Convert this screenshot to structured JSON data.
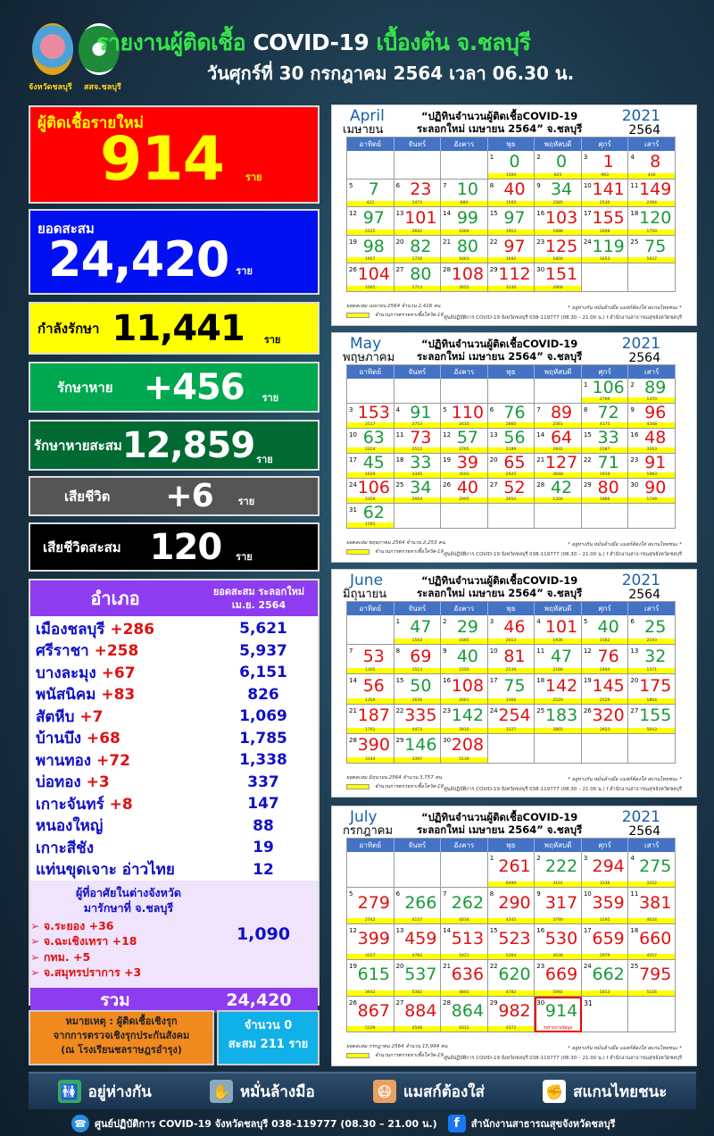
{
  "header": {
    "logo1_caption": "จังหวัดชลบุรี",
    "logo2_caption": "สสจ.ชลบุรี",
    "title_a": "รายงานผู้ติดเชื้อ ",
    "title_b": "COVID-19",
    "title_c": " เบื้องต้น จ.ชลบุรี",
    "subtitle": "วันศุกร์ที่ 30 กรกฎาคม 2564 เวลา 06.30 น."
  },
  "stats": {
    "new": {
      "label": "ผู้ติดเชื้อรายใหม่",
      "value": "914",
      "unit": "ราย"
    },
    "cumulative": {
      "label": "ยอดสะสม",
      "value": "24,420",
      "unit": "ราย"
    },
    "treating": {
      "label": "กำลังรักษา",
      "value": "11,441",
      "unit": "ราย"
    },
    "recovered": {
      "label": "รักษาหาย",
      "value": "+456",
      "unit": "ราย"
    },
    "recovered_total": {
      "label": "รักษาหายสะสม",
      "value": "12,859",
      "unit": "ราย"
    },
    "deaths": {
      "label": "เสียชีวิต",
      "value": "+6",
      "unit": "ราย"
    },
    "deaths_total": {
      "label": "เสียชีวิตสะสม",
      "value": "120",
      "unit": "ราย"
    }
  },
  "districts": {
    "col1": "อำเภอ",
    "col2_a": "ยอดสะสม ระลอกใหม่",
    "col2_b": "เม.ย. 2564",
    "rows": [
      {
        "name": "เมืองชลบุรี",
        "new": "+286",
        "total": "5,621"
      },
      {
        "name": "ศรีราชา",
        "new": "+258",
        "total": "5,937"
      },
      {
        "name": "บางละมุง",
        "new": "+67",
        "total": "6,151"
      },
      {
        "name": "พนัสนิคม",
        "new": "+83",
        "total": "826"
      },
      {
        "name": "สัตหีบ",
        "new": "+7",
        "total": "1,069"
      },
      {
        "name": "บ้านบึง",
        "new": "+68",
        "total": "1,785"
      },
      {
        "name": "พานทอง",
        "new": "+72",
        "total": "1,338"
      },
      {
        "name": "บ่อทอง",
        "new": "+3",
        "total": "337"
      },
      {
        "name": "เกาะจันทร์",
        "new": "+8",
        "total": "147"
      },
      {
        "name": "หนองใหญ่",
        "new": "",
        "total": "88"
      },
      {
        "name": "เกาะสีชัง",
        "new": "",
        "total": "19"
      },
      {
        "name": "แท่นขุดเจาะ อ่าวไทย",
        "new": "",
        "total": "12"
      }
    ],
    "other_title_a": "ผู้ที่อาศัยในต่างจังหวัด",
    "other_title_b": "มารักษาที่ จ.ชลบุรี",
    "other_items": [
      "จ.ระยอง +36",
      "จ.ฉะเชิงเทรา +18",
      "กทม. +5",
      "จ.สมุทรปราการ +3"
    ],
    "other_total": "1,090",
    "total_label": "รวม",
    "total_value": "24,420"
  },
  "note": {
    "text_a": "หมายเหตุ : ผู้ติดเชื้อเชิงรุก",
    "text_b": "จากการตรวจเชิงรุกประกันสังคม",
    "text_c": "(ณ โรงเรียนชลราษฎรอำรุง)",
    "count": "จำนวน  0",
    "cum": "สะสม 211 ราย"
  },
  "calendar_common": {
    "title_a": "“ปฏิทินจำนวนผู้ติดเชื้อCOVID-19",
    "title_b": "ระลอกใหม่ เมษายน 2564” จ.ชลบุรี",
    "year_ad": "2021",
    "year_be": "2564",
    "weekdays": [
      "อาทิตย์",
      "จันทร์",
      "อังคาร",
      "พุธ",
      "พฤหัสบดี",
      "ศุกร์",
      "เสาร์"
    ],
    "legend": "จำนวนการตรวจหาเชื้อโควิด-19",
    "motto": "* อยู่ห่างกัน หมั่นล้างมือ แมสก์ต้องใส่ สแกนไทยชนะ *",
    "hotline": "ศูนย์ปฏิบัติการ COVID-19 จังหวัดชลบุรี 038-119777 (08.30 – 21.00 น.)  f สำนักงานสาธารณสุขจังหวัดชลบุรี",
    "colors": {
      "r": "#e01010",
      "g": "#1a9a3a"
    }
  },
  "calendars": [
    {
      "month_en": "April",
      "month_th": "เมษายน",
      "summary": "ยอดสะสม เมษายน 2564 จำนวน 2,416 คน",
      "offset": 4,
      "days": [
        [
          0,
          "g",
          "1500"
        ],
        [
          0,
          "g",
          "825"
        ],
        [
          1,
          "r",
          "963"
        ],
        [
          8,
          "r",
          "430"
        ],
        [
          7,
          "g",
          "422"
        ],
        [
          23,
          "r",
          "1473"
        ],
        [
          10,
          "g",
          "689"
        ],
        [
          40,
          "r",
          "1505"
        ],
        [
          34,
          "g",
          "2585"
        ],
        [
          141,
          "r",
          "2530"
        ],
        [
          149,
          "r",
          "2394"
        ],
        [
          97,
          "g",
          "2125"
        ],
        [
          101,
          "r",
          "2602"
        ],
        [
          99,
          "g",
          "1664"
        ],
        [
          97,
          "g",
          "1913"
        ],
        [
          103,
          "r",
          "1688"
        ],
        [
          155,
          "r",
          "2008"
        ],
        [
          120,
          "g",
          "1750"
        ],
        [
          98,
          "g",
          "1957"
        ],
        [
          82,
          "g",
          "1756"
        ],
        [
          80,
          "g",
          "1663"
        ],
        [
          97,
          "r",
          "1692"
        ],
        [
          125,
          "r",
          "1800"
        ],
        [
          119,
          "g",
          "1653"
        ],
        [
          75,
          "g",
          "1637"
        ],
        [
          104,
          "r",
          "1065"
        ],
        [
          80,
          "g",
          "1713"
        ],
        [
          108,
          "r",
          "2652"
        ],
        [
          112,
          "r",
          "3130"
        ],
        [
          151,
          "r",
          "2968"
        ]
      ]
    },
    {
      "month_en": "May",
      "month_th": "พฤษภาคม",
      "summary": "ยอดสะสม พฤษภาคม 2564 จำนวน 2,253 คน",
      "offset": 6,
      "days": [
        [
          106,
          "g",
          "2700"
        ],
        [
          89,
          "g",
          "1370"
        ],
        [
          153,
          "r",
          "2517"
        ],
        [
          91,
          "g",
          "2753"
        ],
        [
          110,
          "r",
          "2410"
        ],
        [
          76,
          "g",
          "2860"
        ],
        [
          89,
          "r",
          "2561"
        ],
        [
          72,
          "g",
          "4175"
        ],
        [
          96,
          "r",
          "4348"
        ],
        [
          63,
          "g",
          "2224"
        ],
        [
          73,
          "r",
          "2512"
        ],
        [
          57,
          "g",
          "2765"
        ],
        [
          56,
          "g",
          "2189"
        ],
        [
          64,
          "r",
          "2932"
        ],
        [
          33,
          "g",
          "2387"
        ],
        [
          48,
          "r",
          "3263"
        ],
        [
          45,
          "g",
          "1629"
        ],
        [
          33,
          "g",
          "3345"
        ],
        [
          39,
          "r",
          "3503"
        ],
        [
          65,
          "r",
          "2925"
        ],
        [
          127,
          "r",
          "3648"
        ],
        [
          71,
          "g",
          "1919"
        ],
        [
          91,
          "r",
          "1983"
        ],
        [
          106,
          "r",
          "2359"
        ],
        [
          34,
          "g",
          "2954"
        ],
        [
          40,
          "r",
          "2905"
        ],
        [
          52,
          "r",
          "2654"
        ],
        [
          42,
          "g",
          "1356"
        ],
        [
          80,
          "r",
          "1886"
        ],
        [
          90,
          "r",
          "1749"
        ],
        [
          62,
          "g",
          "1591"
        ]
      ]
    },
    {
      "month_en": "June",
      "month_th": "มิถุนายน",
      "summary": "ยอดสะสม มิถุนายน 2564 จำนวน 3,757 คน",
      "offset": 2,
      "days": [
        [
          47,
          "g",
          "1543"
        ],
        [
          29,
          "g",
          "1665"
        ],
        [
          46,
          "r",
          "2013"
        ],
        [
          101,
          "r",
          "1936"
        ],
        [
          40,
          "g",
          "1582"
        ],
        [
          25,
          "g",
          "2193"
        ],
        [
          53,
          "r",
          "1305"
        ],
        [
          69,
          "r",
          "1513"
        ],
        [
          40,
          "g",
          "1550"
        ],
        [
          81,
          "r",
          "2539"
        ],
        [
          47,
          "g",
          "2188"
        ],
        [
          76,
          "r",
          "2494"
        ],
        [
          32,
          "g",
          "1371"
        ],
        [
          56,
          "r",
          "1359"
        ],
        [
          50,
          "g",
          "1636"
        ],
        [
          108,
          "r",
          "2061"
        ],
        [
          75,
          "g",
          "3366"
        ],
        [
          142,
          "r",
          "2529"
        ],
        [
          145,
          "r",
          "2529"
        ],
        [
          175,
          "r",
          "1864"
        ],
        [
          187,
          "r",
          "1761"
        ],
        [
          335,
          "r",
          "4473"
        ],
        [
          142,
          "g",
          "3910"
        ],
        [
          254,
          "r",
          "3227"
        ],
        [
          183,
          "g",
          "3865"
        ],
        [
          320,
          "r",
          "3923"
        ],
        [
          155,
          "g",
          "5643"
        ],
        [
          390,
          "r",
          "3144"
        ],
        [
          146,
          "g",
          "3397"
        ],
        [
          208,
          "r",
          "5130"
        ]
      ]
    },
    {
      "month_en": "July",
      "month_th": "กรกฎาคม",
      "summary": "ยอดสะสม กรกฎาคม 2564 จำนวน 15,994 คน",
      "offset": 4,
      "days": [
        [
          261,
          "r",
          "6499"
        ],
        [
          222,
          "g",
          "3101"
        ],
        [
          294,
          "r",
          "3136"
        ],
        [
          275,
          "g",
          "3352"
        ],
        [
          279,
          "r",
          "2742"
        ],
        [
          266,
          "g",
          "4157"
        ],
        [
          262,
          "g",
          "4034"
        ],
        [
          290,
          "r",
          "4345"
        ],
        [
          317,
          "r",
          "3790"
        ],
        [
          359,
          "r",
          "3195"
        ],
        [
          381,
          "r",
          "4624"
        ],
        [
          399,
          "r",
          "3257"
        ],
        [
          459,
          "r",
          "4782"
        ],
        [
          513,
          "r",
          "5421"
        ],
        [
          523,
          "r",
          "5264"
        ],
        [
          530,
          "r",
          "4538"
        ],
        [
          659,
          "r",
          "5979"
        ],
        [
          660,
          "r",
          "4557"
        ],
        [
          615,
          "g",
          "3932"
        ],
        [
          537,
          "g",
          "5382"
        ],
        [
          636,
          "r",
          "4803"
        ],
        [
          620,
          "g",
          "4782"
        ],
        [
          669,
          "r",
          "5092"
        ],
        [
          662,
          "g",
          "5013"
        ],
        [
          795,
          "r",
          "5156"
        ],
        [
          867,
          "r",
          "5109"
        ],
        [
          884,
          "r",
          "4508"
        ],
        [
          864,
          "g",
          "4312"
        ],
        [
          982,
          "r",
          "4372"
        ],
        [
          914,
          "g",
          "รอรายงานข้อมูล",
          "highlight"
        ],
        [
          "",
          "",
          ""
        ]
      ]
    }
  ],
  "banner": {
    "items": [
      {
        "icon": "distance-icon",
        "label": "อยู่ห่างกัน"
      },
      {
        "icon": "handwash-icon",
        "label": "หมั่นล้างมือ"
      },
      {
        "icon": "mask-icon",
        "label": "แมสก์ต้องใส่"
      },
      {
        "icon": "thaichana-icon",
        "label": "สแกนไทยชนะ"
      }
    ]
  },
  "footer": {
    "hotline": "ศูนย์ปฏิบัติการ COVID-19 จังหวัดชลบุรี 038-119777 (08.30 – 21.00 น.)",
    "facebook": "สำนักงานสาธารณสุขจังหวัดชลบุรี"
  }
}
